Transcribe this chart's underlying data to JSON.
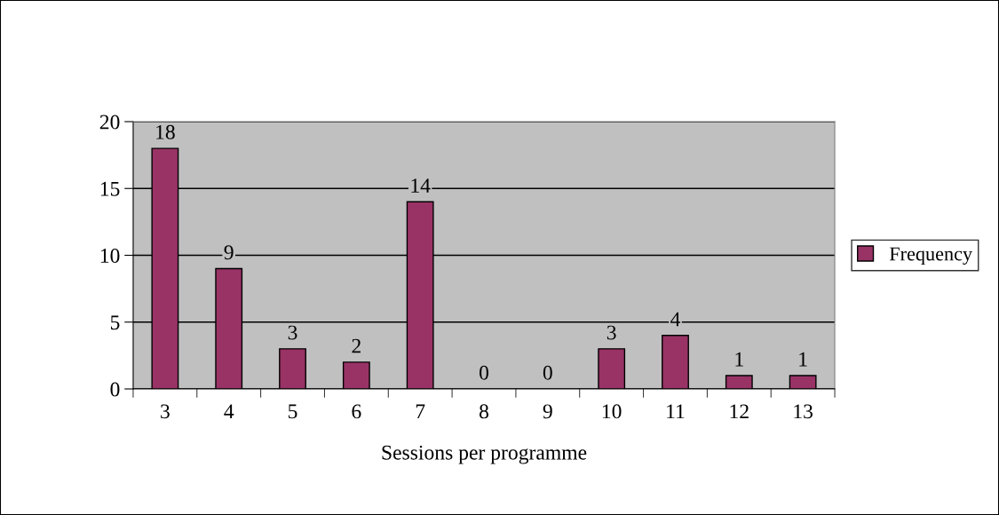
{
  "chart_data": {
    "type": "bar",
    "xlabel": "Sessions per programme",
    "categories": [
      "3",
      "4",
      "5",
      "6",
      "7",
      "8",
      "9",
      "10",
      "11",
      "12",
      "13"
    ],
    "series": [
      {
        "name": "Frequency",
        "color": "#993366",
        "values": [
          18,
          9,
          3,
          2,
          14,
          0,
          0,
          3,
          4,
          1,
          1
        ]
      }
    ],
    "ylim": [
      0,
      20
    ],
    "yticks": [
      0,
      5,
      10,
      15,
      20
    ],
    "grid": "y",
    "legend": "right",
    "data_labels": true
  }
}
